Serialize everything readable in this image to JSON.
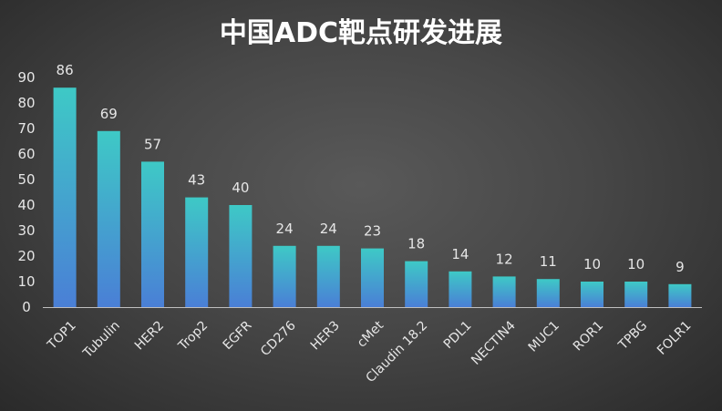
{
  "chart_data": {
    "type": "bar",
    "title": "中国ADC靶点研发进展",
    "categories": [
      "TOP1",
      "Tubulin",
      "HER2",
      "Trop2",
      "EGFR",
      "CD276",
      "HER3",
      "cMet",
      "Claudin 18.2",
      "PDL1",
      "NECTIN4",
      "MUC1",
      "ROR1",
      "TPBG",
      "FOLR1"
    ],
    "values": [
      86,
      69,
      57,
      43,
      40,
      24,
      24,
      23,
      18,
      14,
      12,
      11,
      10,
      10,
      9
    ],
    "data_labels": [
      "86",
      "69",
      "57",
      "43",
      "40",
      "24",
      "24",
      "23",
      "18",
      "14",
      "12",
      "11",
      "10",
      "10",
      "9"
    ],
    "yticks": [
      "0",
      "10",
      "20",
      "30",
      "40",
      "50",
      "60",
      "70",
      "80",
      "90"
    ],
    "ylim": [
      0,
      90
    ],
    "xlabel": "",
    "ylabel": "",
    "grid": false,
    "legend": "none",
    "colors": {
      "bar_top": "#3ec9c6",
      "bar_bottom": "#4a7fd6",
      "axis": "#bfbfbf",
      "text": "#e6e6e6"
    }
  }
}
